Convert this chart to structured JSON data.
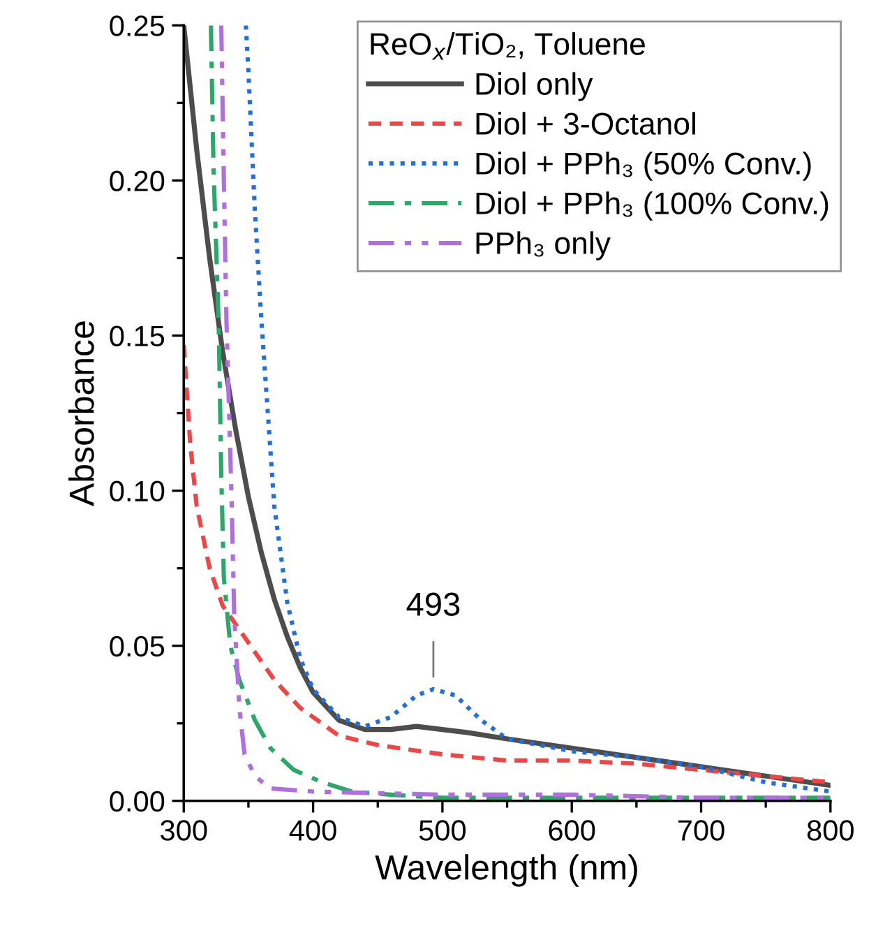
{
  "chart_data": {
    "type": "line",
    "xlabel": "Wavelength (nm)",
    "ylabel": "Absorbance",
    "legend_title": "ReO$_{x}$/TiO₂, Toluene",
    "legend": "top right",
    "grid": false,
    "xlim": [
      300,
      800
    ],
    "xticks": [
      300,
      400,
      500,
      600,
      700,
      800
    ],
    "ylim": [
      0,
      0.25
    ],
    "yticks": [
      {
        "value": 0,
        "label": "0.00"
      },
      {
        "value": 0.05,
        "label": "0.05"
      },
      {
        "value": 0.1,
        "label": "0.10"
      },
      {
        "value": 0.15,
        "label": "0.15"
      },
      {
        "value": 0.2,
        "label": "0.20"
      },
      {
        "value": 0.25,
        "label": "0.25"
      }
    ],
    "annotations": [
      {
        "text": "493",
        "x": 493,
        "y": 0.037
      }
    ],
    "series": [
      {
        "name": "Diol only",
        "color": "#4d4d4d",
        "line_style": "solid",
        "x": [
          300,
          310,
          320,
          330,
          340,
          350,
          360,
          370,
          380,
          390,
          400,
          420,
          440,
          460,
          480,
          500,
          520,
          550,
          600,
          650,
          700,
          750,
          800
        ],
        "values": [
          0.25,
          0.21,
          0.175,
          0.145,
          0.12,
          0.098,
          0.08,
          0.065,
          0.053,
          0.043,
          0.035,
          0.026,
          0.023,
          0.023,
          0.024,
          0.023,
          0.022,
          0.02,
          0.017,
          0.014,
          0.011,
          0.008,
          0.005
        ]
      },
      {
        "name": "Diol + 3-Octanol",
        "color": "#f04545",
        "line_style": "dashed",
        "x": [
          300,
          305,
          310,
          320,
          330,
          340,
          350,
          370,
          390,
          420,
          450,
          500,
          550,
          600,
          650,
          700,
          750,
          800
        ],
        "values": [
          0.147,
          0.115,
          0.095,
          0.075,
          0.063,
          0.057,
          0.051,
          0.039,
          0.03,
          0.021,
          0.018,
          0.015,
          0.013,
          0.013,
          0.012,
          0.01,
          0.008,
          0.006
        ]
      },
      {
        "name": "Diol + PPh₃ (50% Conv.)",
        "color": "#1f6fe0",
        "line_style": "dotted",
        "x": [
          348,
          350,
          355,
          360,
          370,
          380,
          390,
          400,
          420,
          440,
          460,
          480,
          493,
          510,
          530,
          550,
          600,
          650,
          700,
          750,
          800
        ],
        "values": [
          0.25,
          0.235,
          0.19,
          0.155,
          0.095,
          0.064,
          0.046,
          0.036,
          0.027,
          0.024,
          0.027,
          0.034,
          0.036,
          0.034,
          0.026,
          0.02,
          0.016,
          0.014,
          0.011,
          0.006,
          0.003
        ]
      },
      {
        "name": "Diol + PPh₃ (100% Conv.)",
        "color": "#2aa86a",
        "line_style": "dashdot",
        "x": [
          321,
          323,
          327,
          329,
          331,
          336,
          343,
          355,
          367,
          385,
          407,
          430,
          460,
          500,
          600,
          700,
          800
        ],
        "values": [
          0.25,
          0.204,
          0.154,
          0.105,
          0.072,
          0.05,
          0.039,
          0.026,
          0.017,
          0.01,
          0.006,
          0.003,
          0.002,
          0.001,
          0.001,
          0.001,
          0.001
        ]
      },
      {
        "name": "PPh₃ only",
        "color": "#b06ee0",
        "line_style": "dashdotdot",
        "x": [
          329,
          331,
          333,
          337,
          339,
          343,
          347,
          355,
          367,
          400,
          500,
          600,
          700,
          800
        ],
        "values": [
          0.25,
          0.2,
          0.155,
          0.097,
          0.06,
          0.03,
          0.015,
          0.008,
          0.004,
          0.003,
          0.002,
          0.002,
          0.001,
          0.001
        ]
      }
    ]
  }
}
